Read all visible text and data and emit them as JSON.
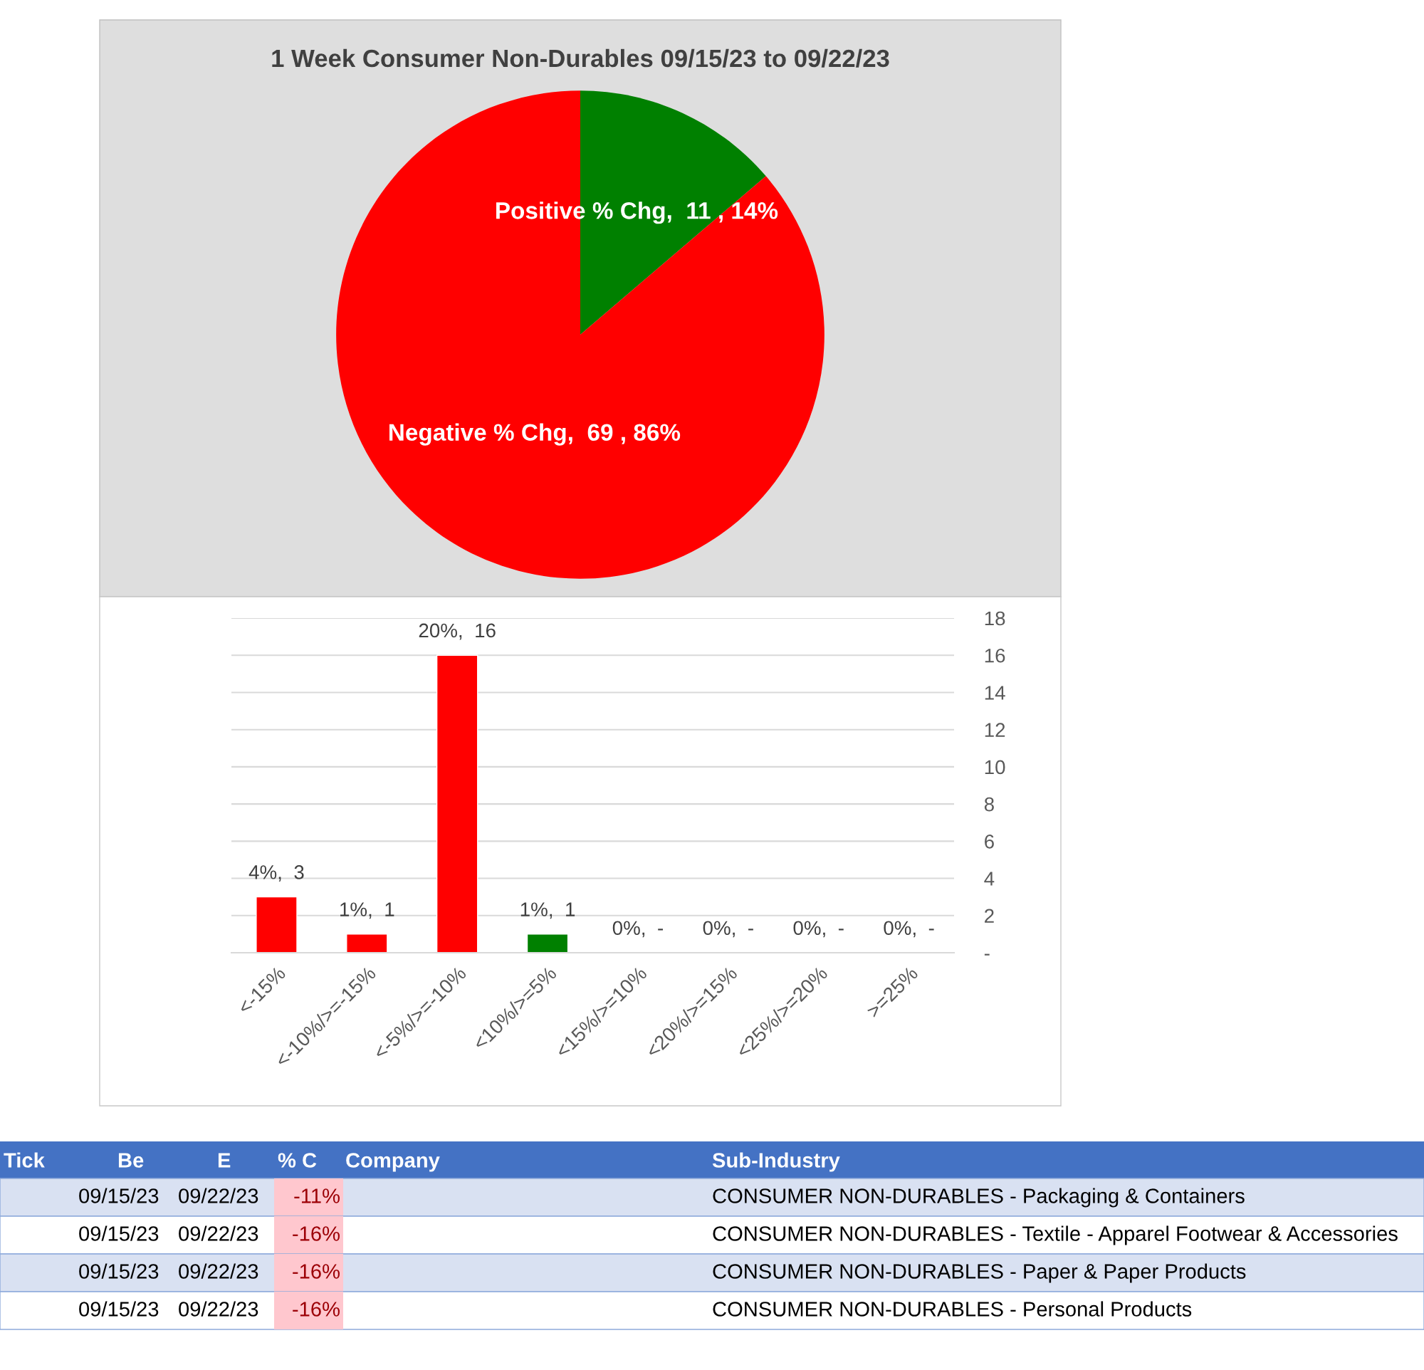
{
  "chart_data": [
    {
      "type": "pie",
      "title": "1 Week Consumer Non-Durables 09/15/23 to 09/22/23",
      "values": [
        11,
        69
      ],
      "colors": [
        "#008000",
        "#ff0000"
      ],
      "value_labels": [
        "Positive % Chg,  11 , 14%",
        "Negative % Chg,  69 , 86%"
      ]
    },
    {
      "type": "bar",
      "categories": [
        "<-15%",
        "<-10%/>=-15%",
        "<-5%/>=-10%",
        "<10%/>=5%",
        "<15%/>=10%",
        "<20%/>=15%",
        "<25%/>=20%",
        ">=25%"
      ],
      "values": [
        3,
        1,
        16,
        1,
        0,
        0,
        0,
        0
      ],
      "colors": [
        "#ff0000",
        "#ff0000",
        "#ff0000",
        "#008000",
        null,
        null,
        null,
        null
      ],
      "value_labels": [
        "4%,  3",
        "1%,  1",
        "20%,  16",
        "1%,  1",
        "0%,  -",
        "0%,  -",
        "0%,  -",
        "0%,  -"
      ],
      "ylim": [
        0,
        18
      ],
      "yticks": [
        {
          "value": 0,
          "label": "-"
        },
        2,
        4,
        6,
        8,
        10,
        12,
        14,
        16,
        18
      ],
      "grid": "y"
    },
    {
      "type": "other",
      "annotations": [
        "Tick",
        "Be",
        "E",
        "% C",
        "Company",
        "Sub-Industry",
        "09/15/23",
        "09/22/23",
        "-11%",
        "CONSUMER NON-DURABLES - Packaging & Containers",
        "09/15/23",
        "09/22/23",
        "-16%",
        "CONSUMER NON-DURABLES - Textile - Apparel Footwear & Accessories",
        "09/15/23",
        "09/22/23",
        "-16%",
        "CONSUMER NON-DURABLES - Paper & Paper Products",
        "09/15/23",
        "09/22/23",
        "-16%",
        "CONSUMER NON-DURABLES - Personal Products"
      ]
    }
  ]
}
